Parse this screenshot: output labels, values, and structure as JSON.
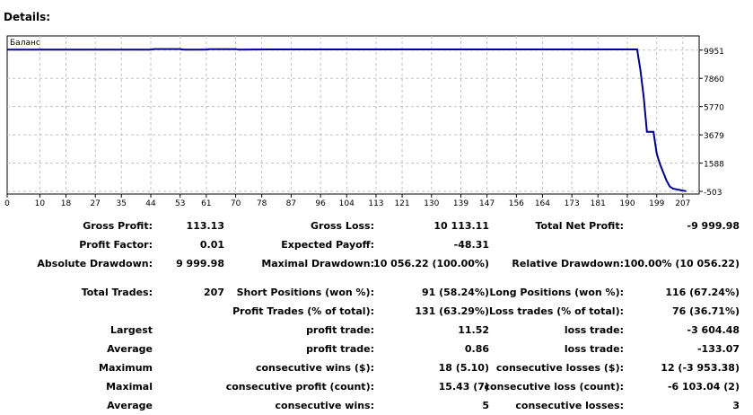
{
  "title": "Details:",
  "chart_data": {
    "type": "line",
    "series": [
      {
        "name": "Баланс",
        "x": [
          0,
          22,
          44,
          45,
          53,
          54,
          61,
          62,
          70,
          71,
          80,
          130,
          193,
          194,
          195,
          196,
          197,
          198,
          199,
          200,
          201,
          202,
          203,
          204,
          205,
          206,
          207,
          208
        ],
        "values": [
          9985,
          9985,
          9985,
          10030,
          10030,
          9990,
          9990,
          10020,
          10020,
          9980,
          10000,
          10000,
          10000,
          8500,
          6500,
          3900,
          3900,
          3900,
          2300,
          1500,
          900,
          300,
          -150,
          -300,
          -350,
          -400,
          -450,
          -480
        ]
      }
    ],
    "x_ticks": [
      0,
      10,
      18,
      27,
      35,
      44,
      53,
      61,
      70,
      78,
      87,
      96,
      104,
      113,
      121,
      130,
      139,
      147,
      156,
      164,
      173,
      181,
      190,
      199,
      207
    ],
    "y_ticks": [
      9951,
      7860,
      5770,
      3679,
      1588,
      -503
    ],
    "xlim": [
      0,
      212
    ],
    "ylim": [
      -700,
      11000
    ],
    "grid": true,
    "legend": "top-left"
  },
  "stats": {
    "rows": [
      [
        {
          "label": "Gross Profit:",
          "value": "113.13"
        },
        {
          "label": "Gross Loss:",
          "value": "10 113.11"
        },
        {
          "label": "Total Net Profit:",
          "value": "-9 999.98"
        }
      ],
      [
        {
          "label": "Profit Factor:",
          "value": "0.01"
        },
        {
          "label": "Expected Payoff:",
          "value": "-48.31"
        },
        {
          "label": "",
          "value": ""
        }
      ],
      [
        {
          "label": "Absolute Drawdown:",
          "value": "9 999.98"
        },
        {
          "label": "Maximal Drawdown:",
          "value": "10 056.22 (100.00%)"
        },
        {
          "label": "Relative Drawdown:",
          "value": "100.00% (10 056.22)"
        }
      ],
      [
        {
          "label": "Total Trades:",
          "value": "207"
        },
        {
          "label": "Short Positions (won %):",
          "value": "91 (58.24%)"
        },
        {
          "label": "Long Positions (won %):",
          "value": "116 (67.24%)"
        }
      ],
      [
        {
          "label": "",
          "value": ""
        },
        {
          "label": "Profit Trades (% of total):",
          "value": "131 (63.29%)"
        },
        {
          "label": "Loss trades (% of total):",
          "value": "76 (36.71%)"
        }
      ],
      [
        {
          "label": "Largest",
          "value": ""
        },
        {
          "label": "profit trade:",
          "value": "11.52"
        },
        {
          "label": "loss trade:",
          "value": "-3 604.48"
        }
      ],
      [
        {
          "label": "Average",
          "value": ""
        },
        {
          "label": "profit trade:",
          "value": "0.86"
        },
        {
          "label": "loss trade:",
          "value": "-133.07"
        }
      ],
      [
        {
          "label": "Maximum",
          "value": ""
        },
        {
          "label": "consecutive wins ($):",
          "value": "18 (5.10)"
        },
        {
          "label": "consecutive losses ($):",
          "value": "12 (-3 953.38)"
        }
      ],
      [
        {
          "label": "Maximal",
          "value": ""
        },
        {
          "label": "consecutive profit (count):",
          "value": "15.43 (7)"
        },
        {
          "label": "consecutive loss (count):",
          "value": "-6 103.04 (2)"
        }
      ],
      [
        {
          "label": "Average",
          "value": ""
        },
        {
          "label": "consecutive wins:",
          "value": "5"
        },
        {
          "label": "consecutive losses:",
          "value": "3"
        }
      ]
    ]
  }
}
